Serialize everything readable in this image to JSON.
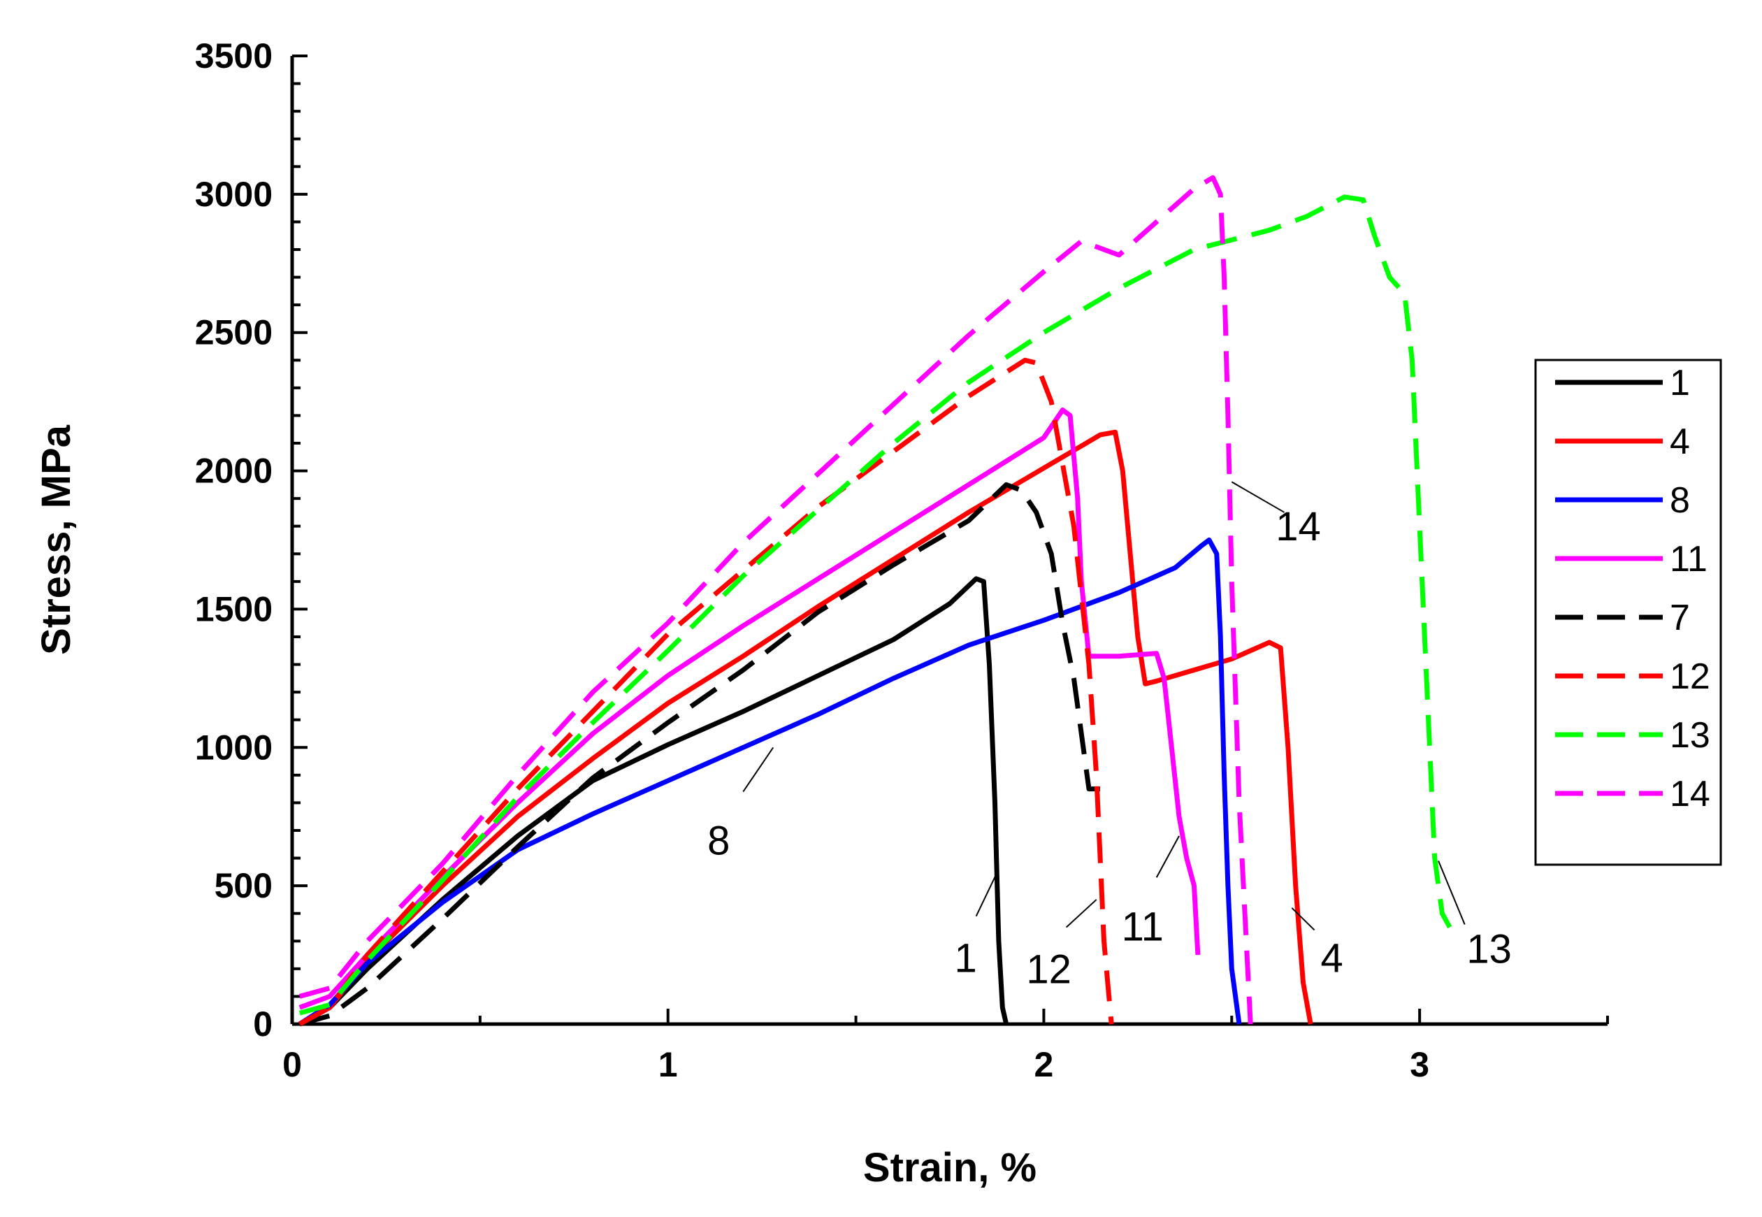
{
  "chart_data": {
    "type": "line",
    "title": "",
    "xlabel": "Strain, %",
    "ylabel": "Stress, MPa",
    "xlim": [
      0,
      3.5
    ],
    "ylim": [
      0,
      3500
    ],
    "xticks": [
      0,
      1,
      2,
      3
    ],
    "xtick_labels": [
      "0",
      "1",
      "2",
      "3"
    ],
    "yticks": [
      0,
      500,
      1000,
      1500,
      2000,
      2500,
      3000,
      3500
    ],
    "ytick_labels": [
      "0",
      "500",
      "1000",
      "1500",
      "2000",
      "2500",
      "3000",
      "3500"
    ],
    "grid": false,
    "legend_position": "right",
    "series": [
      {
        "name": "1",
        "color": "#000000",
        "dash": "solid",
        "x": [
          0.02,
          0.1,
          0.2,
          0.4,
          0.6,
          0.8,
          1.0,
          1.2,
          1.4,
          1.6,
          1.75,
          1.82,
          1.84,
          1.855,
          1.87,
          1.88,
          1.89,
          1.9
        ],
        "y": [
          0,
          60,
          200,
          450,
          680,
          880,
          1010,
          1130,
          1260,
          1390,
          1520,
          1610,
          1600,
          1300,
          800,
          300,
          60,
          0
        ]
      },
      {
        "name": "4",
        "color": "#ff0000",
        "dash": "solid",
        "x": [
          0.02,
          0.1,
          0.2,
          0.4,
          0.6,
          0.8,
          1.0,
          1.2,
          1.4,
          1.6,
          1.8,
          2.0,
          2.1,
          2.15,
          2.19,
          2.21,
          2.23,
          2.25,
          2.27,
          2.3,
          2.4,
          2.5,
          2.6,
          2.63,
          2.65,
          2.67,
          2.69,
          2.71
        ],
        "y": [
          0,
          60,
          230,
          500,
          750,
          960,
          1160,
          1330,
          1510,
          1680,
          1850,
          2010,
          2090,
          2130,
          2140,
          2000,
          1700,
          1400,
          1230,
          1240,
          1280,
          1320,
          1380,
          1360,
          1000,
          500,
          150,
          0
        ]
      },
      {
        "name": "8",
        "color": "#0000ff",
        "dash": "solid",
        "x": [
          0.02,
          0.1,
          0.2,
          0.4,
          0.6,
          0.8,
          1.0,
          1.2,
          1.4,
          1.6,
          1.8,
          2.0,
          2.2,
          2.35,
          2.42,
          2.44,
          2.46,
          2.47,
          2.48,
          2.49,
          2.5,
          2.52
        ],
        "y": [
          0,
          70,
          220,
          440,
          630,
          760,
          880,
          1000,
          1120,
          1250,
          1370,
          1460,
          1560,
          1650,
          1730,
          1750,
          1700,
          1400,
          900,
          500,
          200,
          0
        ]
      },
      {
        "name": "11",
        "color": "#ff00ff",
        "dash": "solid",
        "x": [
          0.02,
          0.1,
          0.2,
          0.4,
          0.6,
          0.8,
          1.0,
          1.2,
          1.4,
          1.6,
          1.8,
          2.0,
          2.05,
          2.07,
          2.09,
          2.1,
          2.12,
          2.2,
          2.3,
          2.32,
          2.34,
          2.36,
          2.38,
          2.4,
          2.41
        ],
        "y": [
          60,
          100,
          250,
          530,
          800,
          1050,
          1260,
          1440,
          1610,
          1780,
          1950,
          2120,
          2220,
          2200,
          1900,
          1600,
          1330,
          1330,
          1340,
          1250,
          1000,
          750,
          600,
          500,
          250
        ]
      },
      {
        "name": "7",
        "color": "#000000",
        "dash": "dash",
        "x": [
          0.02,
          0.1,
          0.2,
          0.4,
          0.6,
          0.8,
          1.0,
          1.2,
          1.4,
          1.6,
          1.8,
          1.9,
          1.94,
          1.98,
          2.02,
          2.05,
          2.08,
          2.1,
          2.12,
          2.18
        ],
        "y": [
          0,
          30,
          130,
          380,
          640,
          890,
          1090,
          1280,
          1490,
          1660,
          1820,
          1950,
          1930,
          1850,
          1700,
          1450,
          1250,
          1050,
          850,
          850
        ]
      },
      {
        "name": "12",
        "color": "#ff0000",
        "dash": "dash",
        "x": [
          0.02,
          0.1,
          0.2,
          0.4,
          0.6,
          0.8,
          1.0,
          1.2,
          1.4,
          1.6,
          1.8,
          1.95,
          1.98,
          2.02,
          2.08,
          2.12,
          2.14,
          2.15,
          2.16,
          2.18
        ],
        "y": [
          0,
          60,
          250,
          550,
          850,
          1130,
          1410,
          1640,
          1870,
          2070,
          2270,
          2400,
          2390,
          2250,
          1800,
          1300,
          900,
          600,
          300,
          0
        ]
      },
      {
        "name": "13",
        "color": "#00ff00",
        "dash": "dash",
        "x": [
          0.02,
          0.1,
          0.2,
          0.4,
          0.6,
          0.8,
          1.0,
          1.2,
          1.4,
          1.6,
          1.8,
          2.0,
          2.2,
          2.4,
          2.6,
          2.7,
          2.8,
          2.85,
          2.88,
          2.92,
          2.96,
          2.98,
          3.0,
          3.02,
          3.04,
          3.06,
          3.08
        ],
        "y": [
          40,
          70,
          230,
          520,
          820,
          1090,
          1350,
          1620,
          1860,
          2100,
          2320,
          2500,
          2660,
          2800,
          2870,
          2920,
          2990,
          2980,
          2850,
          2700,
          2640,
          2400,
          1800,
          1200,
          600,
          400,
          350
        ]
      },
      {
        "name": "14",
        "color": "#ff00ff",
        "dash": "dash",
        "x": [
          0.02,
          0.1,
          0.2,
          0.4,
          0.6,
          0.8,
          1.0,
          1.2,
          1.4,
          1.6,
          1.8,
          2.0,
          2.1,
          2.2,
          2.3,
          2.4,
          2.45,
          2.47,
          2.48,
          2.49,
          2.5,
          2.52,
          2.55
        ],
        "y": [
          100,
          130,
          300,
          580,
          900,
          1200,
          1450,
          1740,
          1990,
          2240,
          2490,
          2720,
          2830,
          2780,
          2900,
          3020,
          3060,
          3000,
          2700,
          2200,
          1600,
          800,
          0
        ]
      }
    ],
    "annotations": [
      {
        "text": "1",
        "series": "1",
        "x_from": 1.82,
        "y_from": 390,
        "x_to": 1.88,
        "y_to": 560
      },
      {
        "text": "12",
        "series": "12",
        "x_from": 2.06,
        "y_from": 350,
        "x_to": 2.14,
        "y_to": 450
      },
      {
        "text": "11",
        "series": "11",
        "x_from": 2.3,
        "y_from": 530,
        "x_to": 2.36,
        "y_to": 680
      },
      {
        "text": "4",
        "series": "4",
        "x_from": 2.72,
        "y_from": 340,
        "x_to": 2.66,
        "y_to": 420
      },
      {
        "text": "13",
        "series": "13",
        "x_from": 3.12,
        "y_from": 360,
        "x_to": 3.05,
        "y_to": 590
      },
      {
        "text": "8",
        "series": "8",
        "x_from": 1.2,
        "y_from": 840,
        "x_to": 1.28,
        "y_to": 1000
      },
      {
        "text": "14",
        "series": "14",
        "x_from": 2.64,
        "y_from": 1850,
        "x_to": 2.5,
        "y_to": 1960
      }
    ]
  }
}
